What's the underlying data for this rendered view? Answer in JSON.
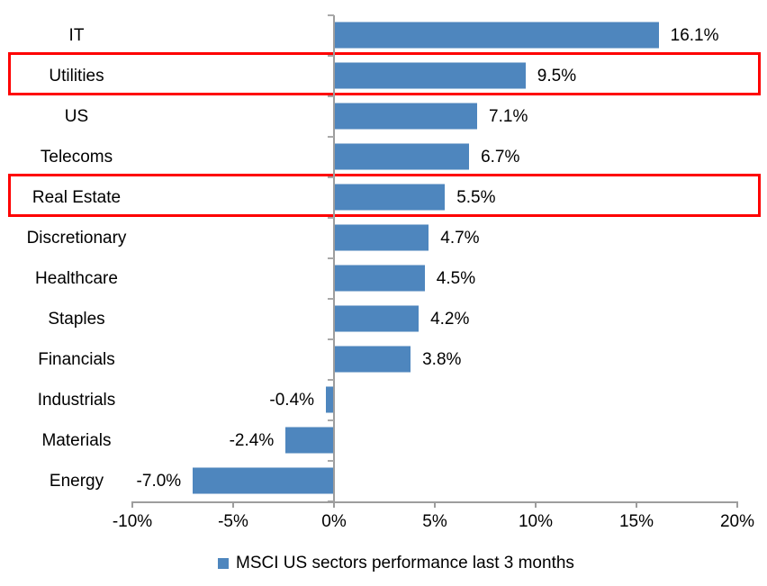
{
  "chart_data": {
    "type": "bar",
    "orientation": "horizontal",
    "title": "",
    "categories": [
      "IT",
      "Utilities",
      "US",
      "Telecoms",
      "Real Estate",
      "Discretionary",
      "Healthcare",
      "Staples",
      "Financials",
      "Industrials",
      "Materials",
      "Energy"
    ],
    "values": [
      16.1,
      9.5,
      7.1,
      6.7,
      5.5,
      4.7,
      4.5,
      4.2,
      3.8,
      -0.4,
      -2.4,
      -7.0
    ],
    "data_labels": [
      "16.1%",
      "9.5%",
      "7.1%",
      "6.7%",
      "5.5%",
      "4.7%",
      "4.5%",
      "4.2%",
      "3.8%",
      "-0.4%",
      "-2.4%",
      "-7.0%"
    ],
    "x_ticks": [
      "-10%",
      "-5%",
      "0%",
      "5%",
      "10%",
      "15%",
      "20%"
    ],
    "x_tick_values": [
      -10,
      -5,
      0,
      5,
      10,
      15,
      20
    ],
    "xlim": [
      -10,
      20
    ],
    "grid": false,
    "legend_position": "bottom",
    "legend": "MSCI US sectors performance last 3 months",
    "bar_color": "#4e86be",
    "axis_color": "#9d9d9d",
    "highlight_color": "#fe0000",
    "highlighted_categories": [
      "Utilities",
      "Real Estate"
    ]
  }
}
